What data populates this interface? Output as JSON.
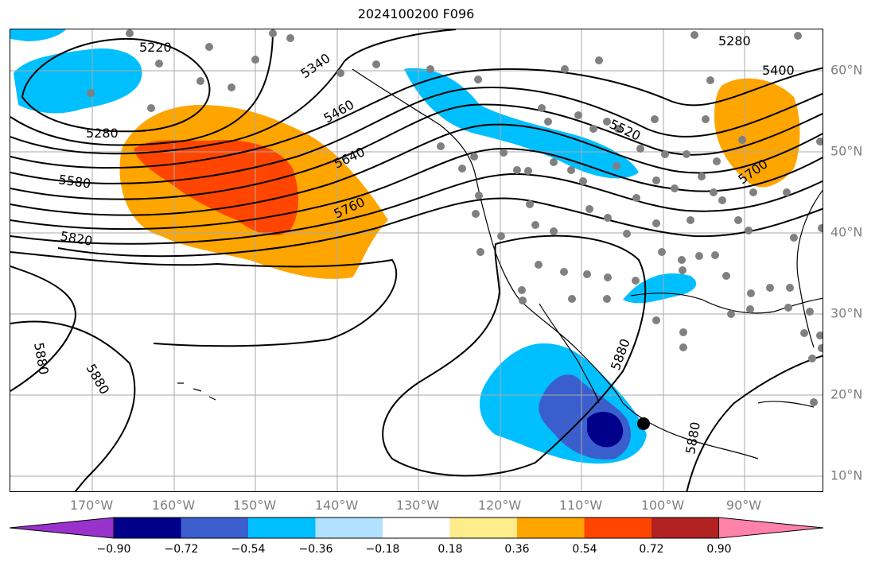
{
  "title": "2024100200 F096",
  "lon_labels": [
    "170°W",
    "160°W",
    "150°W",
    "140°W",
    "130°W",
    "120°W",
    "110°W",
    "100°W",
    "90°W"
  ],
  "lat_labels": [
    "60°N",
    "50°N",
    "40°N",
    "30°N",
    "20°N",
    "10°N"
  ],
  "contour_labels": [
    "5220",
    "5280",
    "5340",
    "5280",
    "5400",
    "5460",
    "5520",
    "5580",
    "5640",
    "5700",
    "5760",
    "5820",
    "5880",
    "5880",
    "5880",
    "5880"
  ],
  "colorbar": {
    "tick_labels": [
      "−0.90",
      "−0.72",
      "−0.54",
      "−0.36",
      "−0.18",
      "0.18",
      "0.36",
      "0.54",
      "0.72",
      "0.90"
    ],
    "colors": [
      "#9932cc",
      "#00008b",
      "#3a5fcd",
      "#00bfff",
      "#b0e2ff",
      "#ffffff",
      "#ffec8b",
      "#ffa500",
      "#ff4500",
      "#b22222",
      "#ff82ab"
    ]
  },
  "legend_colors": {
    "grid": "#aaaaaa",
    "station": "#808080",
    "contour": "#000000",
    "marker": "#000000"
  }
}
